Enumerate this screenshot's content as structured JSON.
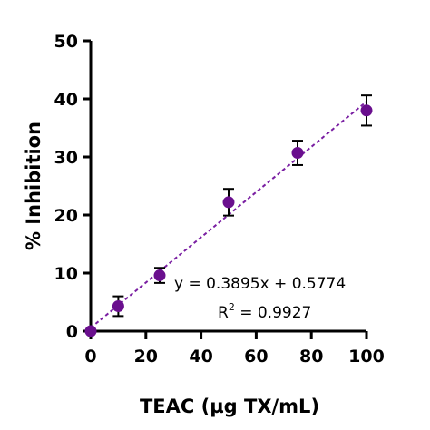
{
  "chart_data": {
    "type": "scatter",
    "xlabel": "TEAC (µg TX/mL)",
    "ylabel": "% Inhibition",
    "xlim": [
      0,
      100
    ],
    "ylim": [
      0,
      50
    ],
    "x_ticks": [
      0,
      20,
      40,
      60,
      80,
      100
    ],
    "y_ticks": [
      0,
      10,
      20,
      30,
      40,
      50
    ],
    "grid": false,
    "colors": {
      "point": "#6a0f8e",
      "fit_line": "#7a1fa2",
      "error_bar": "#000000"
    },
    "series": [
      {
        "x": [
          0,
          10,
          25,
          50,
          75,
          100
        ],
        "y": [
          0.0,
          4.3,
          9.6,
          22.2,
          30.7,
          38.0
        ],
        "error": [
          0.0,
          1.7,
          1.3,
          2.3,
          2.1,
          2.6
        ]
      }
    ],
    "fit": {
      "slope": 0.3895,
      "intercept": 0.5774,
      "x_range": [
        0,
        100
      ],
      "style": "dashed"
    },
    "annotations": {
      "equation": "y = 0.3895x + 0.5774",
      "r2_prefix": "R",
      "r2_exp": "2",
      "r2_suffix": " = 0.9927"
    }
  }
}
